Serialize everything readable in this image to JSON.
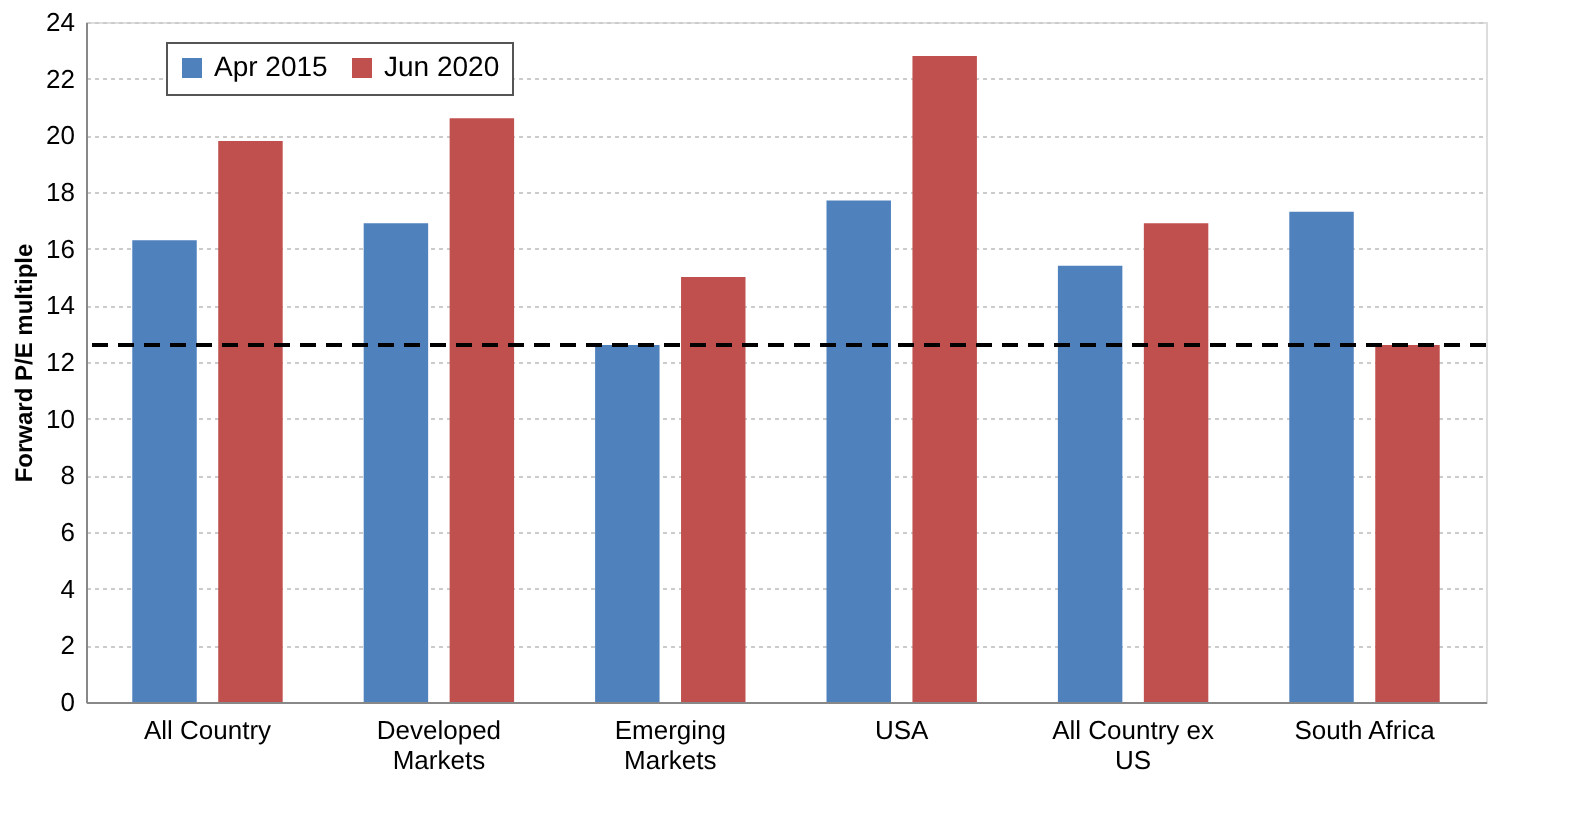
{
  "chart_data": {
    "type": "bar",
    "ylabel": "Forward P/E multiple",
    "categories": [
      "All Country",
      "Developed Markets",
      "Emerging Markets",
      "USA",
      "All Country ex US",
      "South Africa"
    ],
    "series": [
      {
        "name": "Apr 2015",
        "color": "#4f81bd",
        "values": [
          16.3,
          16.9,
          12.6,
          17.7,
          15.4,
          17.3
        ]
      },
      {
        "name": "Jun 2020",
        "color": "#c0504d",
        "values": [
          19.8,
          20.6,
          15.0,
          22.8,
          16.9,
          12.6
        ]
      }
    ],
    "ylim": [
      0,
      24
    ],
    "yticks": [
      0,
      2,
      4,
      6,
      8,
      10,
      12,
      14,
      16,
      18,
      20,
      22,
      24
    ],
    "ref_lines": [
      {
        "axis": "y",
        "value": 12.6,
        "color": "#000000",
        "line_style": "dashed"
      }
    ],
    "grid": "y",
    "legend": "top left"
  }
}
